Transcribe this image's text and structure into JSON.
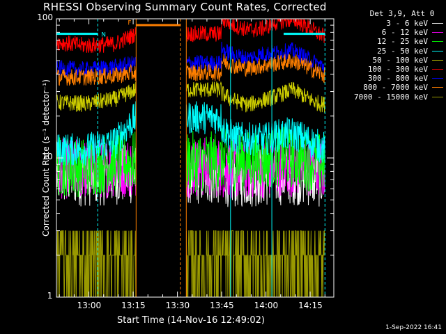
{
  "chart_data": {
    "type": "line",
    "title": "RHESSI Observing Summary Count Rates, Corrected",
    "xlabel": "Start Time (14-Nov-16 12:49:02)",
    "ylabel": "Corrected Count Rate (s⁻¹ detector⁻¹)",
    "yscale": "log",
    "ylim": [
      1,
      100
    ],
    "xlim_minutes": [
      0,
      94
    ],
    "x_tick_labels": [
      "13:00",
      "13:15",
      "13:30",
      "13:45",
      "14:00",
      "14:15"
    ],
    "x_tick_minutes": [
      11,
      26,
      41,
      56,
      71,
      86
    ],
    "y_tick_labels": [
      "1",
      "10",
      "100"
    ],
    "y_tick_values": [
      1,
      10,
      100
    ],
    "grid": false,
    "legend_position": "right",
    "legend_header": "Det 3,9, Att 0",
    "series": [
      {
        "name": "3 - 6 keV",
        "color": "#ffffff",
        "x": [
          0,
          10,
          20,
          35,
          54,
          56,
          60,
          70,
          75,
          80,
          85,
          88,
          92
        ],
        "y": [
          7.5,
          7.4,
          7.6,
          null,
          null,
          7.5,
          7.2,
          7.4,
          7.5,
          7.6,
          7.4,
          7.3,
          7.2
        ]
      },
      {
        "name": "6 - 12 keV",
        "color": "#ff00ff",
        "x": [
          0,
          10,
          20,
          35,
          54,
          56,
          60,
          70,
          75,
          80,
          85,
          88,
          92
        ],
        "y": [
          8.4,
          8.3,
          8.6,
          null,
          null,
          8.5,
          8.3,
          8.4,
          8.6,
          8.7,
          8.5,
          8.4,
          8.3
        ]
      },
      {
        "name": "12 - 25 keV",
        "color": "#00ff00",
        "x": [
          0,
          10,
          20,
          35,
          54,
          56,
          60,
          70,
          75,
          80,
          85,
          88,
          92
        ],
        "y": [
          8.8,
          8.6,
          9.4,
          null,
          null,
          10.0,
          9.5,
          9.8,
          10.2,
          10.0,
          9.6,
          9.3,
          9.0
        ]
      },
      {
        "name": "25 - 50 keV",
        "color": "#00ffff",
        "x": [
          0,
          10,
          20,
          27,
          35,
          54,
          56,
          60,
          70,
          75,
          80,
          85,
          88,
          92
        ],
        "y": [
          11.5,
          11.5,
          13.0,
          19.5,
          null,
          null,
          16.5,
          14.0,
          13.5,
          14.5,
          15.0,
          13.5,
          12.5,
          11.5
        ]
      },
      {
        "name": "50 - 100 keV",
        "color": "#cccc00",
        "x": [
          0,
          10,
          20,
          27,
          35,
          54,
          56,
          60,
          65,
          70,
          75,
          80,
          85,
          88,
          92
        ],
        "y": [
          25,
          24.5,
          26.5,
          31,
          null,
          null,
          29,
          26,
          24,
          26,
          28,
          31,
          27,
          25,
          24
        ]
      },
      {
        "name": "100 - 300 keV",
        "color": "#ff0000",
        "x": [
          0,
          10,
          20,
          27,
          35,
          54,
          56,
          60,
          65,
          70,
          75,
          80,
          85,
          88,
          92
        ],
        "y": [
          68,
          64,
          66,
          78,
          null,
          null,
          100,
          90,
          83,
          85,
          95,
          99,
          88,
          80,
          72
        ]
      },
      {
        "name": "300 - 800 keV",
        "color": "#0000ff",
        "x": [
          0,
          10,
          20,
          27,
          35,
          54,
          56,
          60,
          65,
          70,
          75,
          80,
          85,
          88,
          92
        ],
        "y": [
          44,
          43,
          45,
          48,
          null,
          null,
          60,
          55,
          52,
          56,
          57,
          59,
          52,
          48,
          44
        ]
      },
      {
        "name": "800 - 7000 keV",
        "color": "#ff7f00",
        "x": [
          0,
          10,
          20,
          27,
          35,
          54,
          56,
          60,
          65,
          70,
          75,
          80,
          85,
          88,
          92
        ],
        "y": [
          38,
          38,
          39,
          41,
          null,
          null,
          50,
          46,
          44,
          46,
          48,
          50,
          45,
          42,
          38
        ]
      },
      {
        "name": "7000 - 15000 keV",
        "color": "#999900",
        "x": [
          0,
          10,
          20,
          27,
          35,
          54,
          56,
          60,
          70,
          80,
          85,
          88,
          92
        ],
        "y": [
          1.9,
          2.0,
          2.1,
          2.2,
          null,
          null,
          2.1,
          2.0,
          2.0,
          2.2,
          2.1,
          2.0,
          1.9
        ]
      }
    ],
    "annotations": [
      {
        "text": "N",
        "color": "#00ffff"
      },
      {
        "text": "F",
        "color": "#ff7f00"
      }
    ],
    "flag_bars": [
      {
        "color": "#00ffff",
        "x_start": 0,
        "x_end": 14,
        "y": 78
      },
      {
        "color": "#ff7f00",
        "x_start": 27,
        "x_end": 42,
        "y": 90
      },
      {
        "color": "#00ffff",
        "x_start": 77,
        "x_end": 91,
        "y": 78
      }
    ],
    "vlines": [
      {
        "x": 14,
        "color": "#00ffff",
        "style": "dashed"
      },
      {
        "x": 27,
        "color": "#ff7f00",
        "style": "solid"
      },
      {
        "x": 42,
        "color": "#ff7f00",
        "style": "dashed"
      },
      {
        "x": 44,
        "color": "#ff7f00",
        "style": "solid"
      },
      {
        "x": 59,
        "color": "#00ffff",
        "style": "solid"
      },
      {
        "x": 73,
        "color": "#00ffff",
        "style": "solid"
      },
      {
        "x": 91,
        "color": "#00ffff",
        "style": "dashed"
      }
    ]
  },
  "footer": {
    "timestamp": "1-Sep-2022 16:41"
  }
}
